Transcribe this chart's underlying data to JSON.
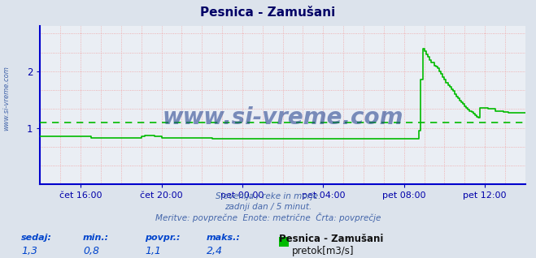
{
  "title": "Pesnica - Zamušani",
  "bg_color": "#dce3ec",
  "plot_bg_color": "#eaeef4",
  "grid_color_pink": "#f0a0a0",
  "grid_color_light": "#d8c8c8",
  "line_color": "#00bb00",
  "avg_line_color": "#00bb00",
  "avg_value": 1.1,
  "axis_color": "#0000cc",
  "title_color": "#000066",
  "tick_color": "#0000aa",
  "label_color": "#4466aa",
  "watermark_color": "#1a3a8a",
  "watermark_text": "www.si-vreme.com",
  "left_label": "www.si-vreme.com",
  "subtitle1": "Slovenija / reke in morje.",
  "subtitle2": "zadnji dan / 5 minut.",
  "subtitle3": "Meritve: povprečne  Enote: metrične  Črta: povprečje",
  "footer_label1": "sedaj:",
  "footer_label2": "min.:",
  "footer_label3": "povpr.:",
  "footer_label4": "maks.:",
  "footer_val1": "1,3",
  "footer_val2": "0,8",
  "footer_val3": "1,1",
  "footer_val4": "2,4",
  "footer_series": "Pesnica - Zamušani",
  "footer_unit": "pretok[m3/s]",
  "ylim": [
    0,
    2.8
  ],
  "yticks": [
    1,
    2
  ],
  "xlim_min": 0,
  "xlim_max": 288,
  "xtick_positions": [
    24,
    72,
    120,
    168,
    216,
    264
  ],
  "xtick_labels": [
    "čet 16:00",
    "čet 20:00",
    "pet 00:00",
    "pet 04:00",
    "pet 08:00",
    "pet 12:00"
  ],
  "flow_data": [
    0.85,
    0.85,
    0.85,
    0.85,
    0.85,
    0.85,
    0.85,
    0.85,
    0.85,
    0.85,
    0.85,
    0.85,
    0.85,
    0.85,
    0.85,
    0.85,
    0.85,
    0.85,
    0.85,
    0.85,
    0.85,
    0.85,
    0.85,
    0.85,
    0.85,
    0.85,
    0.85,
    0.85,
    0.85,
    0.85,
    0.82,
    0.82,
    0.82,
    0.82,
    0.82,
    0.82,
    0.82,
    0.82,
    0.82,
    0.82,
    0.82,
    0.82,
    0.82,
    0.82,
    0.82,
    0.82,
    0.82,
    0.82,
    0.82,
    0.82,
    0.82,
    0.82,
    0.82,
    0.82,
    0.82,
    0.82,
    0.82,
    0.82,
    0.82,
    0.82,
    0.85,
    0.85,
    0.87,
    0.87,
    0.87,
    0.87,
    0.87,
    0.87,
    0.85,
    0.85,
    0.85,
    0.85,
    0.82,
    0.82,
    0.82,
    0.82,
    0.82,
    0.82,
    0.82,
    0.82,
    0.82,
    0.82,
    0.82,
    0.82,
    0.82,
    0.82,
    0.82,
    0.82,
    0.82,
    0.82,
    0.82,
    0.82,
    0.82,
    0.82,
    0.82,
    0.82,
    0.82,
    0.82,
    0.82,
    0.82,
    0.82,
    0.82,
    0.8,
    0.8,
    0.8,
    0.8,
    0.8,
    0.8,
    0.8,
    0.8,
    0.8,
    0.8,
    0.8,
    0.8,
    0.8,
    0.8,
    0.8,
    0.8,
    0.8,
    0.8,
    0.8,
    0.8,
    0.8,
    0.8,
    0.8,
    0.8,
    0.8,
    0.8,
    0.8,
    0.8,
    0.8,
    0.8,
    0.8,
    0.8,
    0.8,
    0.8,
    0.8,
    0.8,
    0.8,
    0.8,
    0.8,
    0.8,
    0.8,
    0.8,
    0.8,
    0.8,
    0.8,
    0.8,
    0.8,
    0.8,
    0.8,
    0.8,
    0.8,
    0.8,
    0.8,
    0.8,
    0.8,
    0.8,
    0.8,
    0.8,
    0.8,
    0.8,
    0.8,
    0.8,
    0.8,
    0.8,
    0.8,
    0.8,
    0.8,
    0.8,
    0.8,
    0.8,
    0.8,
    0.8,
    0.8,
    0.8,
    0.8,
    0.8,
    0.8,
    0.8,
    0.8,
    0.8,
    0.8,
    0.8,
    0.8,
    0.8,
    0.8,
    0.8,
    0.8,
    0.8,
    0.8,
    0.8,
    0.8,
    0.8,
    0.8,
    0.8,
    0.8,
    0.8,
    0.8,
    0.8,
    0.8,
    0.8,
    0.8,
    0.8,
    0.8,
    0.8,
    0.8,
    0.8,
    0.8,
    0.8,
    0.8,
    0.8,
    0.8,
    0.8,
    0.8,
    0.8,
    0.8,
    0.8,
    0.8,
    0.8,
    0.8,
    0.8,
    0.8,
    0.8,
    0.8,
    0.95,
    1.85,
    2.4,
    2.35,
    2.3,
    2.25,
    2.2,
    2.15,
    2.15,
    2.1,
    2.08,
    2.05,
    2.0,
    1.95,
    1.9,
    1.85,
    1.8,
    1.75,
    1.72,
    1.68,
    1.65,
    1.6,
    1.55,
    1.52,
    1.48,
    1.45,
    1.42,
    1.38,
    1.35,
    1.32,
    1.3,
    1.28,
    1.25,
    1.22,
    1.2,
    1.18,
    1.35,
    1.35,
    1.35,
    1.35,
    1.35,
    1.33,
    1.33,
    1.33,
    1.33,
    1.3,
    1.3,
    1.3,
    1.3,
    1.3,
    1.28,
    1.28,
    1.28,
    1.27,
    1.27,
    1.27,
    1.27,
    1.27,
    1.27,
    1.27,
    1.27,
    1.27,
    1.27,
    1.27
  ]
}
